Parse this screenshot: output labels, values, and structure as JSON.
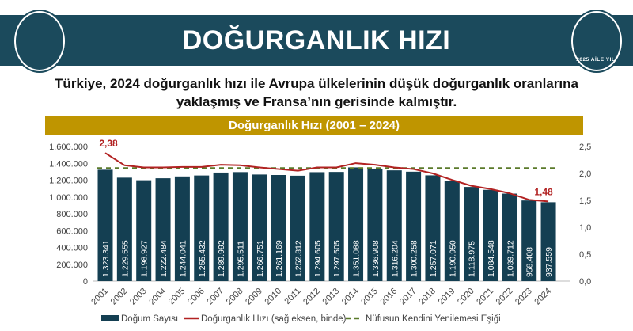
{
  "header": {
    "title": "DOĞURGANLIK HIZI",
    "right_logo_text": "2025 AİLE YILI"
  },
  "subtitle_line1": "Türkiye, 2024 doğurganlık hızı ile Avrupa ülkelerinin düşük doğurganlık oranlarına",
  "subtitle_line2": "yaklaşmış ve Fransa’nın gerisinde kalmıştır.",
  "chart_data": {
    "type": "bar+line",
    "title": "Doğurganlık Hızı (2001 – 2024)",
    "categories": [
      "2001",
      "2002",
      "2003",
      "2004",
      "2005",
      "2006",
      "2007",
      "2008",
      "2009",
      "2010",
      "2011",
      "2012",
      "2013",
      "2014",
      "2015",
      "2016",
      "2017",
      "2018",
      "2019",
      "2020",
      "2021",
      "2022",
      "2023",
      "2024"
    ],
    "bar_series": {
      "name": "Doğum Sayısı",
      "color": "#143f52",
      "values": [
        1323341,
        1229555,
        1198927,
        1222484,
        1244041,
        1255432,
        1289992,
        1295511,
        1266751,
        1261169,
        1252812,
        1294605,
        1297505,
        1351088,
        1336908,
        1316204,
        1300258,
        1257071,
        1190950,
        1118975,
        1084548,
        1039712,
        958408,
        937559
      ],
      "labels": [
        "1.323.341",
        "1.229.555",
        "1.198.927",
        "1.222.484",
        "1.244.041",
        "1.255.432",
        "1.289.992",
        "1.295.511",
        "1.266.751",
        "1.261.169",
        "1.252.812",
        "1.294.605",
        "1.297.505",
        "1.351.088",
        "1.336.908",
        "1.316.204",
        "1.300.258",
        "1.257.071",
        "1.190.950",
        "1.118.975",
        "1.084.548",
        "1.039.712",
        "958.408",
        "937.559"
      ]
    },
    "line_series": {
      "name": "Doğurganlık Hızı (sağ eksen, binde)",
      "color": "#b22222",
      "values": [
        2.38,
        2.15,
        2.11,
        2.11,
        2.12,
        2.12,
        2.16,
        2.15,
        2.11,
        2.08,
        2.05,
        2.11,
        2.11,
        2.19,
        2.16,
        2.11,
        2.08,
        2.0,
        1.88,
        1.77,
        1.71,
        1.63,
        1.51,
        1.48
      ],
      "annotations": [
        {
          "year": "2001",
          "text": "2,38"
        },
        {
          "year": "2024",
          "text": "1,48"
        }
      ]
    },
    "reference_line": {
      "name": "Nüfusun Kendini Yenilemesi Eşiği",
      "value": 2.1,
      "color": "#5a7a2a",
      "style": "dashed"
    },
    "left_axis": {
      "ylim": [
        0,
        1600000
      ],
      "ticks": [
        "0",
        "200.000",
        "400.000",
        "600.000",
        "800.000",
        "1.000.000",
        "1.200.000",
        "1.400.000",
        "1.600.000"
      ]
    },
    "right_axis": {
      "ylim": [
        0,
        2.5
      ],
      "ticks": [
        "0,0",
        "0,5",
        "1,0",
        "1,5",
        "2,0",
        "2,5"
      ]
    },
    "grid": false,
    "legend_placement": "bottom"
  }
}
